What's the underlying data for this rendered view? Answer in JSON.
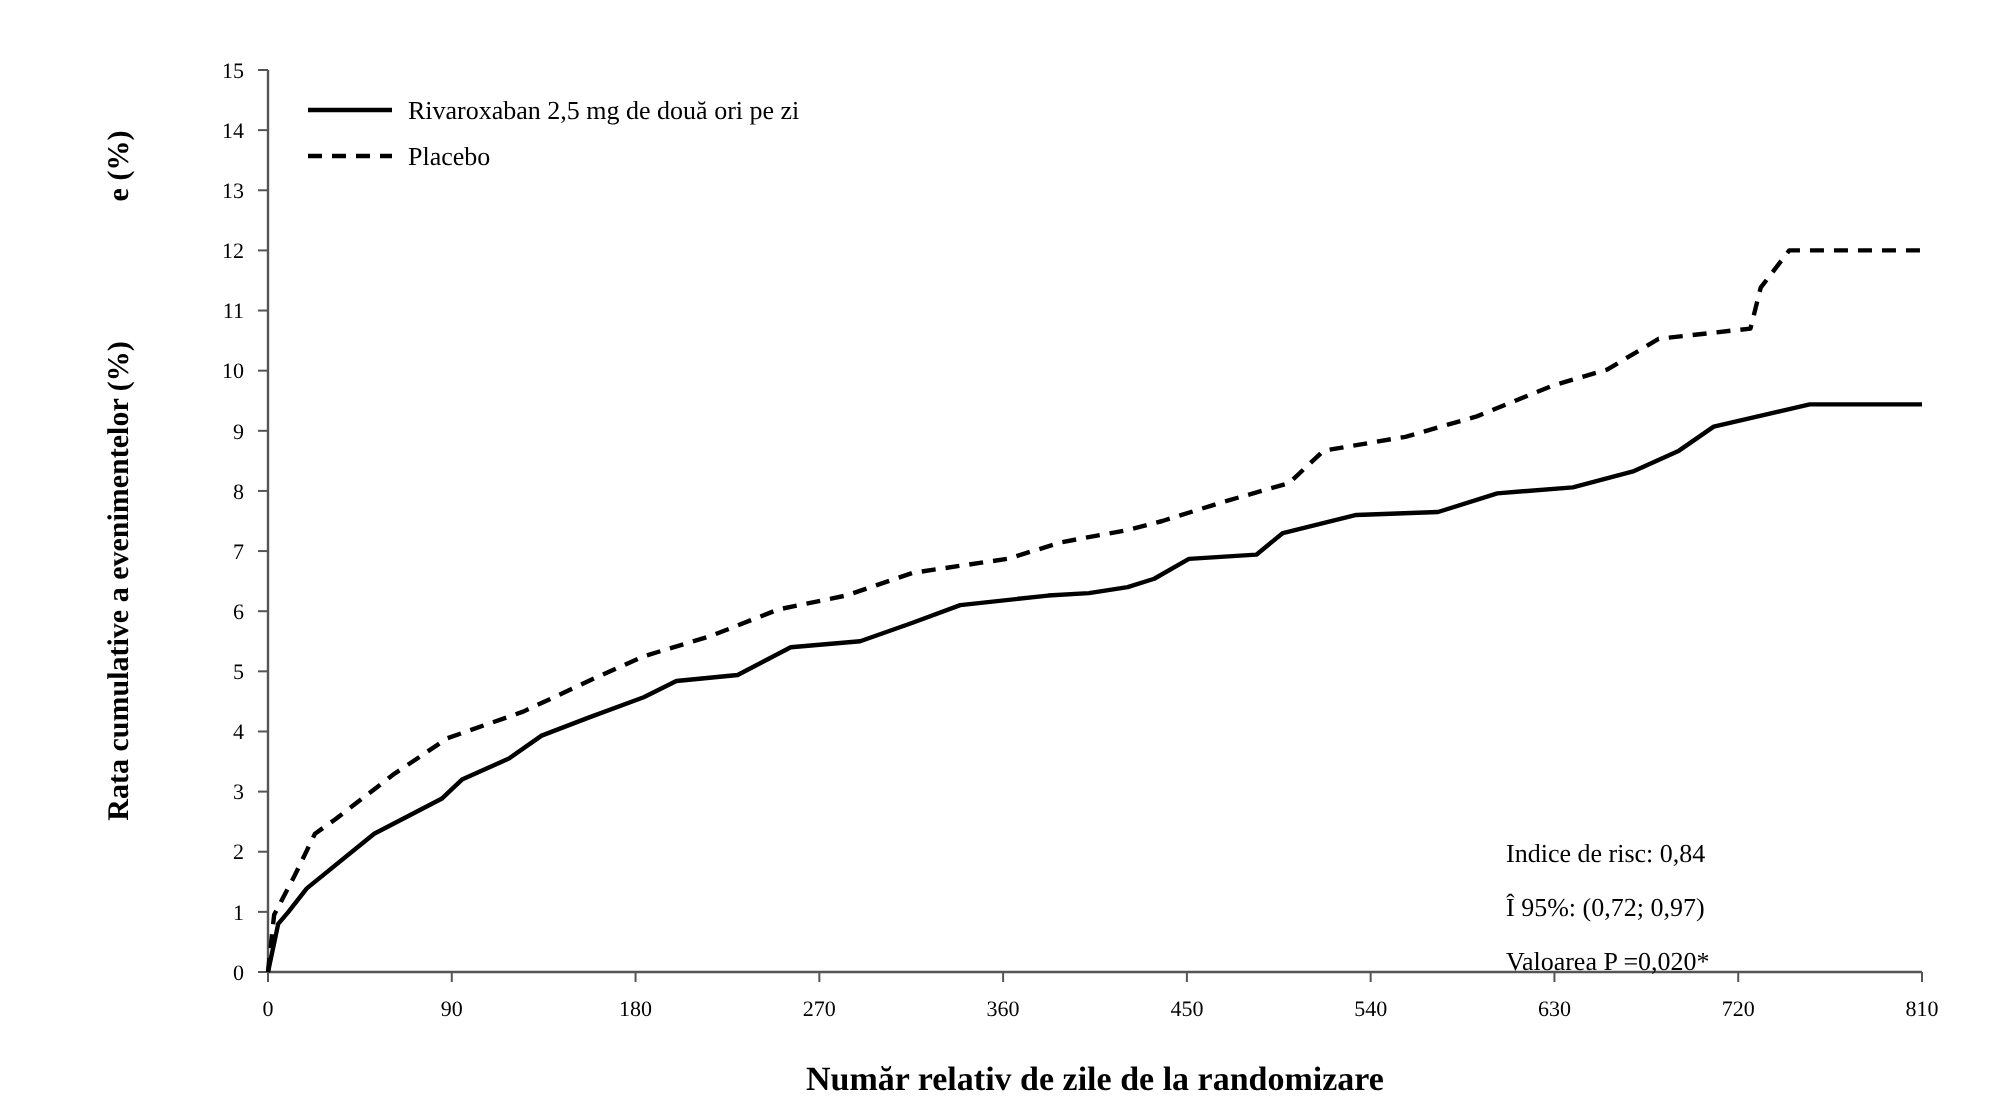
{
  "chart_data": {
    "type": "line",
    "xlabel": "Număr relativ de zile de la randomizare",
    "ylabel": "Rata cumulative a evenimentelor (%)",
    "annotations": [
      "e (%)",
      "Indice de risc: 0,84",
      "Î 95%: (0,72; 0,97)",
      "Valoarea P =0,020*"
    ],
    "xlim": [
      0,
      810
    ],
    "xticks": [
      0,
      90,
      180,
      270,
      360,
      450,
      540,
      630,
      720,
      810
    ],
    "ylim": [
      0,
      15
    ],
    "yticks": [
      0,
      1,
      2,
      3,
      4,
      5,
      6,
      7,
      8,
      9,
      10,
      11,
      12,
      13,
      14,
      15
    ],
    "grid": false,
    "legend": "top left",
    "series": [
      {
        "name": "Rivaroxaban 2,5 mg de două ori pe zi",
        "color": "#000000",
        "line_style": "solid",
        "x": [
          0,
          5,
          10,
          19,
          52,
          85,
          95,
          118,
          134,
          157,
          184,
          200,
          230,
          256,
          290,
          315,
          339,
          382,
          402,
          421,
          434,
          451,
          484,
          497,
          533,
          573,
          602,
          639,
          669,
          691,
          708,
          755,
          810
        ],
        "values": [
          0,
          0.8,
          1.0,
          1.39,
          2.3,
          2.88,
          3.2,
          3.55,
          3.93,
          4.23,
          4.57,
          4.84,
          4.94,
          5.4,
          5.5,
          5.8,
          6.1,
          6.26,
          6.3,
          6.4,
          6.54,
          6.87,
          6.94,
          7.3,
          7.6,
          7.65,
          7.96,
          8.06,
          8.33,
          8.67,
          9.07,
          9.44,
          9.44
        ]
      },
      {
        "name": "Placebo",
        "color": "#000000",
        "line_style": "dashed",
        "x": [
          0,
          3,
          13,
          23,
          33,
          62,
          88,
          125,
          157,
          184,
          217,
          250,
          283,
          316,
          362,
          389,
          421,
          438,
          468,
          500,
          517,
          557,
          592,
          629,
          656,
          681,
          726,
          731,
          745,
          810
        ],
        "values": [
          0,
          0.95,
          1.6,
          2.3,
          2.54,
          3.3,
          3.89,
          4.33,
          4.84,
          5.25,
          5.59,
          6.03,
          6.26,
          6.64,
          6.87,
          7.15,
          7.35,
          7.5,
          7.82,
          8.13,
          8.67,
          8.9,
          9.24,
          9.75,
          10.02,
          10.53,
          10.7,
          11.38,
          12.0,
          12.0
        ]
      }
    ]
  }
}
